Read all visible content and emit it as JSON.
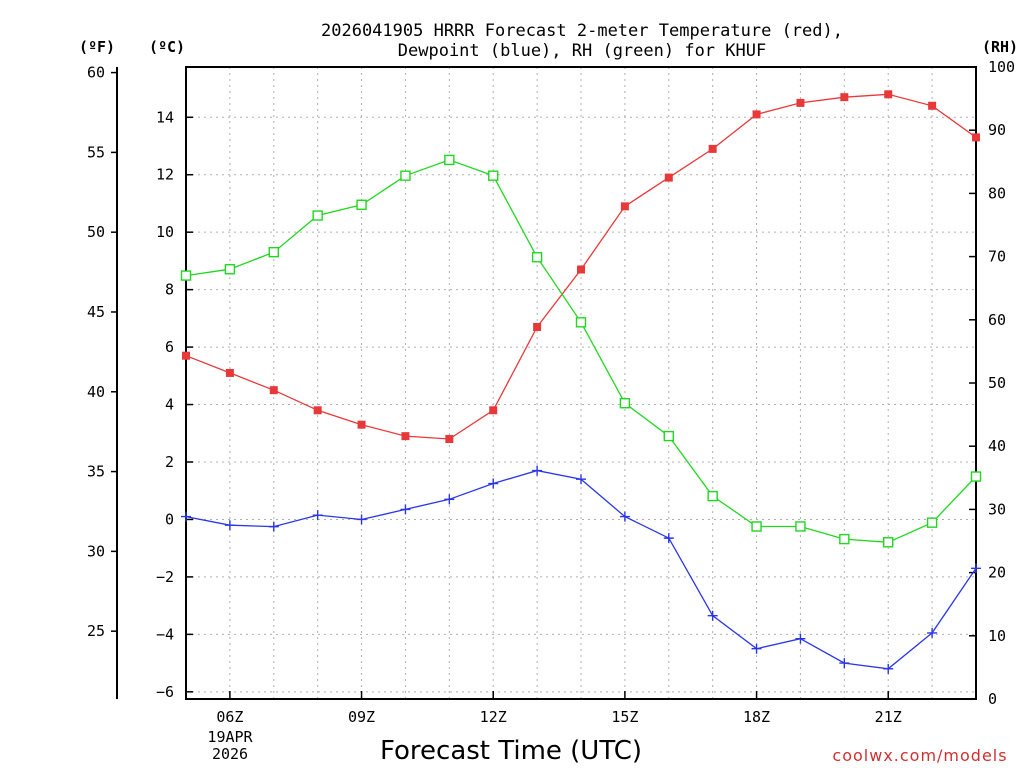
{
  "header": {
    "title_line1": "2026041905 HRRR Forecast 2-meter Temperature (red),",
    "title_line2": "Dewpoint (blue), RH (green) for KHUF"
  },
  "axes": {
    "left_f_unit": "(ºF)",
    "left_c_unit": "(ºC)",
    "right_rh_unit": "(RH)",
    "x_label": "Forecast Time (UTC)",
    "date_line1": "19APR",
    "date_line2": "2026"
  },
  "watermark": "coolwx.com/models",
  "colors": {
    "temperature": "#e8383a",
    "dewpoint": "#2a36e6",
    "rh": "#1fd81f",
    "grid": "#b0b0b0"
  },
  "chart_data": {
    "type": "line",
    "title": "2026041905 HRRR Forecast 2-meter Temperature (red), Dewpoint (blue), RH (green) for KHUF",
    "xlabel": "Forecast Time (UTC)",
    "ylabel_left_c": "(ºC)",
    "ylabel_left_f": "(ºF)",
    "ylabel_right": "(RH)",
    "x": [
      5,
      6,
      7,
      8,
      9,
      10,
      11,
      12,
      13,
      14,
      15,
      16,
      17,
      18,
      19,
      20,
      21,
      22,
      23
    ],
    "xlim": [
      5,
      23
    ],
    "x_ticks": [
      6,
      9,
      12,
      15,
      18,
      21
    ],
    "x_tick_labels": [
      "06Z",
      "09Z",
      "12Z",
      "15Z",
      "18Z",
      "21Z"
    ],
    "ylim_c": [
      -6.25,
      15.75
    ],
    "yticks_c": [
      -6,
      -4,
      -2,
      0,
      2,
      4,
      6,
      8,
      10,
      12,
      14
    ],
    "yticks_f": [
      25,
      30,
      35,
      40,
      45,
      50,
      55,
      60
    ],
    "ylim_rh": [
      0,
      100
    ],
    "yticks_rh": [
      0,
      10,
      20,
      30,
      40,
      50,
      60,
      70,
      80,
      90,
      100
    ],
    "grid": true,
    "series": [
      {
        "name": "Temperature",
        "axis": "c",
        "marker": "filled-square",
        "values": [
          5.7,
          5.1,
          4.5,
          3.8,
          3.3,
          2.9,
          2.8,
          3.8,
          6.7,
          8.7,
          10.9,
          11.9,
          12.9,
          14.1,
          14.5,
          14.7,
          14.8,
          14.4,
          13.3
        ]
      },
      {
        "name": "Dewpoint",
        "axis": "c",
        "marker": "plus",
        "values": [
          0.1,
          -0.2,
          -0.25,
          0.15,
          0.0,
          0.35,
          0.7,
          1.25,
          1.7,
          1.4,
          0.1,
          -0.65,
          -3.35,
          -4.5,
          -4.15,
          -5.0,
          -5.2,
          -3.95,
          -1.7
        ]
      },
      {
        "name": "RH",
        "axis": "rh",
        "marker": "open-square",
        "values": [
          67,
          68,
          70.7,
          76.5,
          78.2,
          82.8,
          85.3,
          82.8,
          69.9,
          59.6,
          46.8,
          41.6,
          32.1,
          27.3,
          27.3,
          25.3,
          24.8,
          27.9,
          35.2
        ]
      }
    ]
  }
}
